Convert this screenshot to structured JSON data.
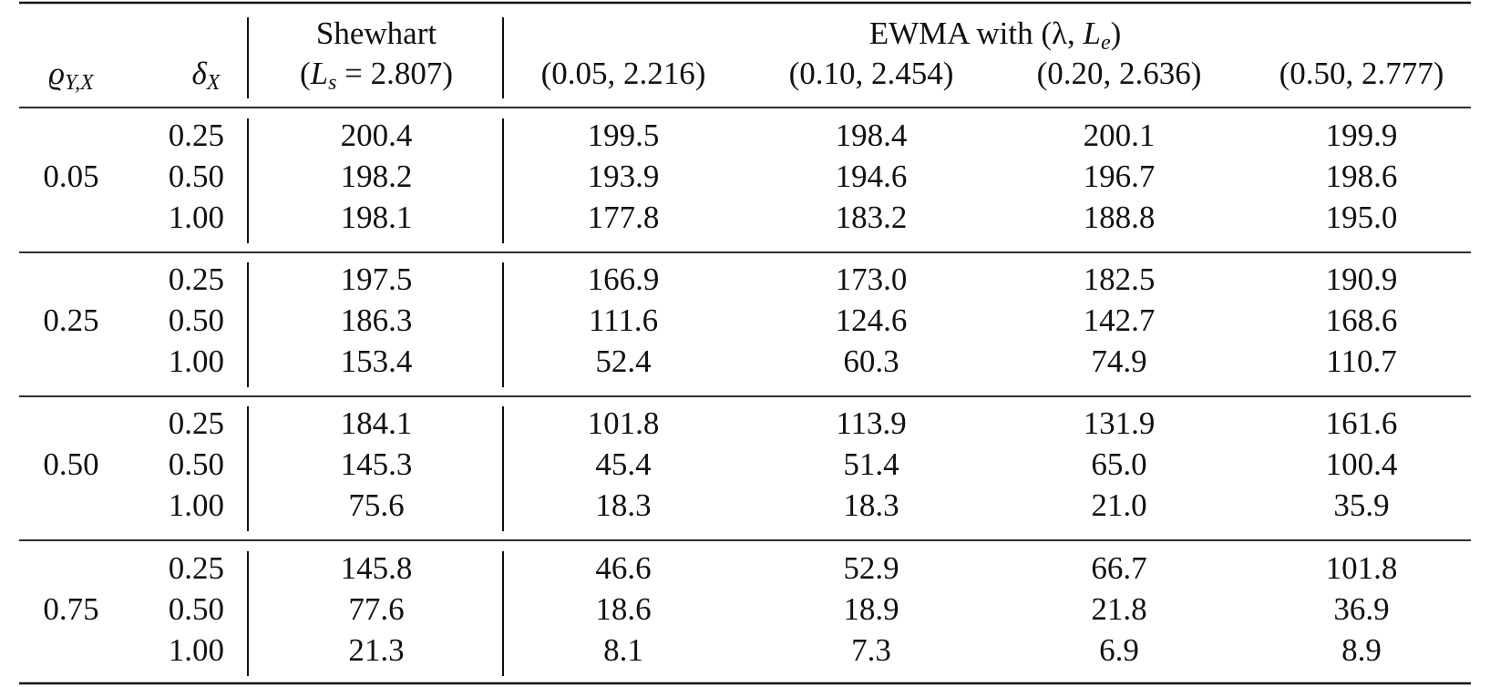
{
  "header": {
    "rho": {
      "symbol": "ϱ",
      "subscript": "Y,X"
    },
    "delta": {
      "symbol": "δ",
      "subscript": "X"
    },
    "shewhart": {
      "title": "Shewhart",
      "param": [
        "(",
        "L",
        "s",
        " = 2.807)"
      ]
    },
    "ewma": {
      "title": [
        "EWMA with (λ, ",
        "L",
        "e",
        ")"
      ],
      "columns": [
        "(0.05, 2.216)",
        "(0.10, 2.454)",
        "(0.20, 2.636)",
        "(0.50, 2.777)"
      ]
    }
  },
  "groups": [
    {
      "rho": "0.05",
      "rows": [
        {
          "delta": "0.25",
          "shewhart": "200.4",
          "ewma": [
            "199.5",
            "198.4",
            "200.1",
            "199.9"
          ]
        },
        {
          "delta": "0.50",
          "shewhart": "198.2",
          "ewma": [
            "193.9",
            "194.6",
            "196.7",
            "198.6"
          ]
        },
        {
          "delta": "1.00",
          "shewhart": "198.1",
          "ewma": [
            "177.8",
            "183.2",
            "188.8",
            "195.0"
          ]
        }
      ]
    },
    {
      "rho": "0.25",
      "rows": [
        {
          "delta": "0.25",
          "shewhart": "197.5",
          "ewma": [
            "166.9",
            "173.0",
            "182.5",
            "190.9"
          ]
        },
        {
          "delta": "0.50",
          "shewhart": "186.3",
          "ewma": [
            "111.6",
            "124.6",
            "142.7",
            "168.6"
          ]
        },
        {
          "delta": "1.00",
          "shewhart": "153.4",
          "ewma": [
            "52.4",
            "60.3",
            "74.9",
            "110.7"
          ]
        }
      ]
    },
    {
      "rho": "0.50",
      "rows": [
        {
          "delta": "0.25",
          "shewhart": "184.1",
          "ewma": [
            "101.8",
            "113.9",
            "131.9",
            "161.6"
          ]
        },
        {
          "delta": "0.50",
          "shewhart": "145.3",
          "ewma": [
            "45.4",
            "51.4",
            "65.0",
            "100.4"
          ]
        },
        {
          "delta": "1.00",
          "shewhart": "75.6",
          "ewma": [
            "18.3",
            "18.3",
            "21.0",
            "35.9"
          ]
        }
      ]
    },
    {
      "rho": "0.75",
      "rows": [
        {
          "delta": "0.25",
          "shewhart": "145.8",
          "ewma": [
            "46.6",
            "52.9",
            "66.7",
            "101.8"
          ]
        },
        {
          "delta": "0.50",
          "shewhart": "77.6",
          "ewma": [
            "18.6",
            "18.9",
            "21.8",
            "36.9"
          ]
        },
        {
          "delta": "1.00",
          "shewhart": "21.3",
          "ewma": [
            "8.1",
            "7.3",
            "6.9",
            "8.9"
          ]
        }
      ]
    }
  ]
}
